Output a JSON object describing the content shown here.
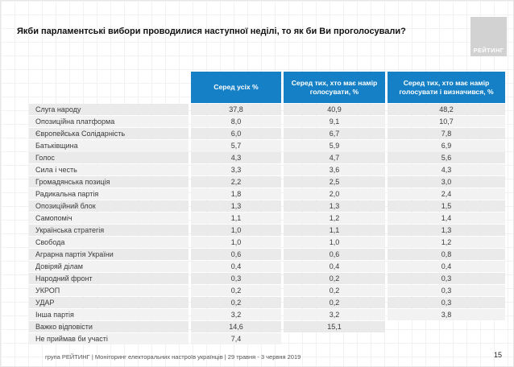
{
  "title": "Якби парламентські вибори проводилися наступної неділі, то як би Ви проголосували?",
  "logo": {
    "text": "РЕЙТИНГ"
  },
  "table": {
    "columns": [
      "Серед усіх %",
      "Серед тих, хто має намір голосувати, %",
      "Серед тих, хто має намір голосувати і визначився, %"
    ],
    "rows": [
      {
        "label": "Слуга народу",
        "values": [
          "37,8",
          "40,9",
          "48,2"
        ]
      },
      {
        "label": "Опозиційна платформа",
        "values": [
          "8,0",
          "9,1",
          "10,7"
        ]
      },
      {
        "label": "Європейська Солідарність",
        "values": [
          "6,0",
          "6,7",
          "7,8"
        ]
      },
      {
        "label": "Батьківщина",
        "values": [
          "5,7",
          "5,9",
          "6,9"
        ]
      },
      {
        "label": "Голос",
        "values": [
          "4,3",
          "4,7",
          "5,6"
        ]
      },
      {
        "label": "Сила і честь",
        "values": [
          "3,3",
          "3,6",
          "4,3"
        ]
      },
      {
        "label": "Громадянська позиція",
        "values": [
          "2,2",
          "2,5",
          "3,0"
        ]
      },
      {
        "label": "Радикальна партія",
        "values": [
          "1,8",
          "2,0",
          "2,4"
        ]
      },
      {
        "label": "Опозиційний блок",
        "values": [
          "1,3",
          "1,3",
          "1,5"
        ]
      },
      {
        "label": "Самопоміч",
        "values": [
          "1,1",
          "1,2",
          "1,4"
        ]
      },
      {
        "label": "Українська стратегія",
        "values": [
          "1,0",
          "1,1",
          "1,3"
        ]
      },
      {
        "label": "Свобода",
        "values": [
          "1,0",
          "1,0",
          "1,2"
        ]
      },
      {
        "label": "Аграрна партія України",
        "values": [
          "0,6",
          "0,6",
          "0,8"
        ]
      },
      {
        "label": "Довіряй ділам",
        "values": [
          "0,4",
          "0,4",
          "0,4"
        ]
      },
      {
        "label": "Народний фронт",
        "values": [
          "0,3",
          "0,2",
          "0,3"
        ]
      },
      {
        "label": "УКРОП",
        "values": [
          "0,2",
          "0,2",
          "0,3"
        ]
      },
      {
        "label": "УДАР",
        "values": [
          "0,2",
          "0,2",
          "0,3"
        ]
      },
      {
        "label": "Інша партія",
        "values": [
          "3,2",
          "3,2",
          "3,8"
        ]
      },
      {
        "label": "Важко відповісти",
        "values": [
          "14,6",
          "15,1",
          ""
        ]
      },
      {
        "label": "Не приймав би участі",
        "values": [
          "7,4",
          "",
          ""
        ]
      }
    ]
  },
  "footer": {
    "source": "група РЕЙТИНГ | Моніторинг електоральних настроїв українців  | 29 травня - 3 червня 2019",
    "page": "15"
  },
  "colors": {
    "header_blue": "#1580c6",
    "row_gray": "#eaeaea",
    "row_gray_alt": "#f2f2f2",
    "logo_gray": "#d2d2d2"
  },
  "chart_data": {
    "type": "table",
    "title": "Якби парламентські вибори проводилися наступної неділі, то як би Ви проголосували?",
    "categories": [
      "Слуга народу",
      "Опозиційна платформа",
      "Європейська Солідарність",
      "Батьківщина",
      "Голос",
      "Сила і честь",
      "Громадянська позиція",
      "Радикальна партія",
      "Опозиційний блок",
      "Самопоміч",
      "Українська стратегія",
      "Свобода",
      "Аграрна партія України",
      "Довіряй ділам",
      "Народний фронт",
      "УКРОП",
      "УДАР",
      "Інша партія",
      "Важко відповісти",
      "Не приймав би участі"
    ],
    "series": [
      {
        "name": "Серед усіх %",
        "values": [
          37.8,
          8.0,
          6.0,
          5.7,
          4.3,
          3.3,
          2.2,
          1.8,
          1.3,
          1.1,
          1.0,
          1.0,
          0.6,
          0.4,
          0.3,
          0.2,
          0.2,
          3.2,
          14.6,
          7.4
        ]
      },
      {
        "name": "Серед тих, хто має намір голосувати, %",
        "values": [
          40.9,
          9.1,
          6.7,
          5.9,
          4.7,
          3.6,
          2.5,
          2.0,
          1.3,
          1.2,
          1.1,
          1.0,
          0.6,
          0.4,
          0.2,
          0.2,
          0.2,
          3.2,
          15.1,
          null
        ]
      },
      {
        "name": "Серед тих, хто має намір голосувати і визначився, %",
        "values": [
          48.2,
          10.7,
          7.8,
          6.9,
          5.6,
          4.3,
          3.0,
          2.4,
          1.5,
          1.4,
          1.3,
          1.2,
          0.8,
          0.4,
          0.3,
          0.3,
          0.3,
          3.8,
          null,
          null
        ]
      }
    ]
  }
}
